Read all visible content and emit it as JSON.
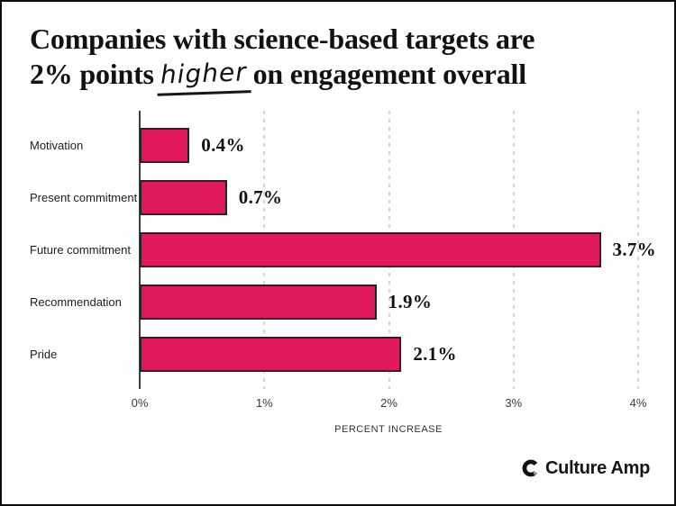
{
  "title": {
    "line1": "Companies with science-based targets are",
    "line2_pre": "2% points",
    "line2_highlight": "higher",
    "line2_post": "on engagement overall"
  },
  "chart_data": {
    "type": "bar",
    "orientation": "horizontal",
    "title": "Companies with science-based targets are 2% points higher on engagement overall",
    "categories": [
      "Motivation",
      "Present commitment",
      "Future commitment",
      "Recommendation",
      "Pride"
    ],
    "values": [
      0.4,
      0.7,
      3.7,
      1.9,
      2.1
    ],
    "value_labels": [
      "0.4%",
      "0.7%",
      "3.7%",
      "1.9%",
      "2.1%"
    ],
    "xlabel": "PERCENT INCREASE",
    "ylabel": "",
    "xlim": [
      0,
      4
    ],
    "xticks": [
      0,
      1,
      2,
      3,
      4
    ],
    "xtick_labels": [
      "0%",
      "1%",
      "2%",
      "3%",
      "4%"
    ],
    "grid": "vertical-dashed",
    "legend": "none",
    "bar_color": "#E0195C",
    "bar_border_color": "#232323",
    "axis_color": "#3F3F3F",
    "gridline_color": "#D5D5D5"
  },
  "footer": {
    "logo_text": "Culture Amp",
    "logo_icon": "culture-amp-c-mark"
  }
}
